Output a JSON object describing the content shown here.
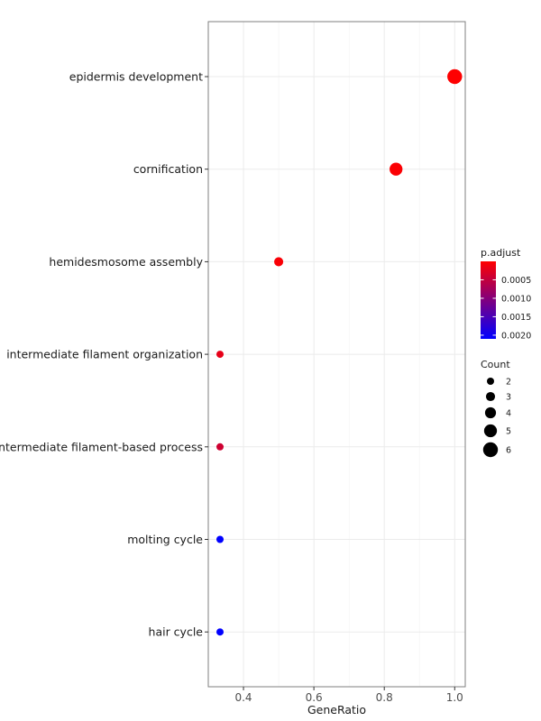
{
  "chart_data": {
    "type": "scatter",
    "subtype": "dotplot",
    "title": "",
    "xlabel": "GeneRatio",
    "ylabel": "",
    "xlim": [
      0.3,
      1.03
    ],
    "xticks": [
      0.4,
      0.6,
      0.8,
      1.0
    ],
    "xtick_labels": [
      "0.4",
      "0.6",
      "0.8",
      "1.0"
    ],
    "grid": true,
    "legend_position": "right",
    "categories": [
      "epidermis development",
      "cornification",
      "hemidesmosome assembly",
      "intermediate filament organization",
      "intermediate filament-based process",
      "molting cycle",
      "hair cycle"
    ],
    "points": [
      {
        "term": "epidermis development",
        "gene_ratio": 1.0,
        "count": 6,
        "p_adjust": 1e-05
      },
      {
        "term": "cornification",
        "gene_ratio": 0.8333,
        "count": 5,
        "p_adjust": 3e-05
      },
      {
        "term": "hemidesmosome assembly",
        "gene_ratio": 0.5,
        "count": 3,
        "p_adjust": 5e-05
      },
      {
        "term": "intermediate filament organization",
        "gene_ratio": 0.3333,
        "count": 2,
        "p_adjust": 0.0002
      },
      {
        "term": "intermediate filament-based process",
        "gene_ratio": 0.3333,
        "count": 2,
        "p_adjust": 0.0004
      },
      {
        "term": "molting cycle",
        "gene_ratio": 0.3333,
        "count": 2,
        "p_adjust": 0.0021
      },
      {
        "term": "hair cycle",
        "gene_ratio": 0.3333,
        "count": 2,
        "p_adjust": 0.0021
      }
    ],
    "color_legend": {
      "title": "p.adjust",
      "low_color": "#ff0000",
      "high_color": "#0000ff",
      "range": [
        0.0,
        0.0021
      ],
      "ticks": [
        0.0005,
        0.001,
        0.0015,
        0.002
      ],
      "tick_labels": [
        "0.0005",
        "0.0010",
        "0.0015",
        "0.0020"
      ]
    },
    "size_legend": {
      "title": "Count",
      "values": [
        2,
        3,
        4,
        5,
        6
      ],
      "labels": [
        "2",
        "3",
        "4",
        "5",
        "6"
      ]
    }
  }
}
